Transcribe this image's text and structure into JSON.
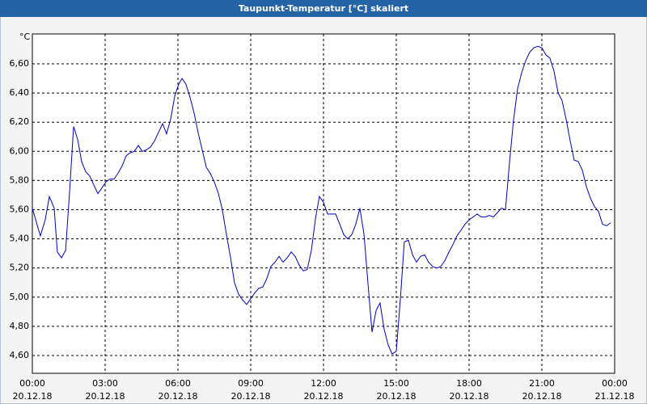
{
  "chart_data": {
    "type": "line",
    "title": "Taupunkt-Temperatur [°C] skaliert",
    "y_unit": "°C",
    "color": "#0000c8",
    "grid": true,
    "xlim": [
      0,
      24
    ],
    "ylim": [
      4.478,
      6.805
    ],
    "xticks": [
      {
        "value": 0,
        "label": "00:00",
        "date": "20.12.18"
      },
      {
        "value": 3,
        "label": "03:00",
        "date": "20.12.18"
      },
      {
        "value": 6,
        "label": "06:00",
        "date": "20.12.18"
      },
      {
        "value": 9,
        "label": "09:00",
        "date": "20.12.18"
      },
      {
        "value": 12,
        "label": "12:00",
        "date": "20.12.18"
      },
      {
        "value": 15,
        "label": "15:00",
        "date": "20.12.18"
      },
      {
        "value": 18,
        "label": "18:00",
        "date": "20.12.18"
      },
      {
        "value": 21,
        "label": "21:00",
        "date": "20.12.18"
      },
      {
        "value": 24,
        "label": "00:00",
        "date": "21.12.18"
      }
    ],
    "yticks": [
      {
        "value": 4.6,
        "label": "4,60"
      },
      {
        "value": 4.8,
        "label": "4,80"
      },
      {
        "value": 5.0,
        "label": "5,00"
      },
      {
        "value": 5.2,
        "label": "5,20"
      },
      {
        "value": 5.4,
        "label": "5,40"
      },
      {
        "value": 5.6,
        "label": "5,60"
      },
      {
        "value": 5.8,
        "label": "5,80"
      },
      {
        "value": 6.0,
        "label": "6,00"
      },
      {
        "value": 6.2,
        "label": "6,20"
      },
      {
        "value": 6.4,
        "label": "6,40"
      },
      {
        "value": 6.6,
        "label": "6,60"
      }
    ],
    "x": [
      0,
      0.33,
      0.53,
      0.7,
      0.9,
      1.03,
      1.2,
      1.37,
      1.53,
      1.7,
      1.87,
      2.03,
      2.2,
      2.37,
      2.53,
      2.7,
      2.87,
      3.03,
      3.2,
      3.37,
      3.53,
      3.7,
      3.87,
      4.03,
      4.2,
      4.37,
      4.53,
      4.7,
      4.87,
      5.03,
      5.2,
      5.37,
      5.53,
      5.7,
      5.87,
      6.03,
      6.17,
      6.33,
      6.5,
      6.67,
      6.83,
      7.0,
      7.17,
      7.33,
      7.5,
      7.67,
      7.83,
      8.0,
      8.17,
      8.33,
      8.5,
      8.67,
      8.83,
      9.0,
      9.17,
      9.33,
      9.5,
      9.67,
      9.83,
      10.0,
      10.17,
      10.33,
      10.5,
      10.67,
      10.83,
      11.0,
      11.17,
      11.33,
      11.5,
      11.67,
      11.83,
      12.0,
      12.17,
      12.33,
      12.5,
      12.67,
      12.83,
      13.0,
      13.17,
      13.33,
      13.5,
      13.67,
      13.83,
      14.0,
      14.17,
      14.33,
      14.5,
      14.67,
      14.83,
      15.0,
      15.17,
      15.33,
      15.5,
      15.67,
      15.83,
      16.0,
      16.17,
      16.33,
      16.5,
      16.67,
      16.83,
      17.0,
      17.17,
      17.33,
      17.5,
      17.67,
      17.83,
      18.0,
      18.17,
      18.33,
      18.5,
      18.67,
      18.83,
      19.0,
      19.17,
      19.33,
      19.5,
      19.67,
      19.83,
      20.0,
      20.17,
      20.33,
      20.5,
      20.67,
      20.83,
      21.0,
      21.17,
      21.33,
      21.5,
      21.67,
      21.83,
      22.0,
      22.17,
      22.33,
      22.5,
      22.67,
      22.83,
      23.0,
      23.17,
      23.33,
      23.5,
      23.67,
      23.83
    ],
    "values": [
      5.61,
      5.42,
      5.53,
      5.69,
      5.61,
      5.31,
      5.27,
      5.32,
      5.71,
      6.17,
      6.08,
      5.93,
      5.86,
      5.83,
      5.77,
      5.71,
      5.75,
      5.79,
      5.81,
      5.81,
      5.85,
      5.9,
      5.97,
      5.99,
      6.0,
      6.04,
      6.0,
      6.01,
      6.03,
      6.07,
      6.13,
      6.19,
      6.12,
      6.22,
      6.38,
      6.46,
      6.5,
      6.46,
      6.37,
      6.26,
      6.13,
      6.01,
      5.89,
      5.85,
      5.79,
      5.71,
      5.6,
      5.43,
      5.27,
      5.1,
      5.02,
      4.98,
      4.95,
      4.99,
      5.03,
      5.06,
      5.07,
      5.13,
      5.21,
      5.24,
      5.28,
      5.24,
      5.27,
      5.31,
      5.28,
      5.22,
      5.18,
      5.19,
      5.32,
      5.54,
      5.69,
      5.65,
      5.57,
      5.57,
      5.57,
      5.5,
      5.43,
      5.4,
      5.43,
      5.5,
      5.61,
      5.43,
      5.1,
      4.76,
      4.91,
      4.96,
      4.78,
      4.67,
      4.61,
      4.63,
      4.99,
      5.38,
      5.39,
      5.29,
      5.24,
      5.28,
      5.29,
      5.24,
      5.21,
      5.2,
      5.21,
      5.25,
      5.31,
      5.36,
      5.42,
      5.46,
      5.5,
      5.53,
      5.55,
      5.57,
      5.55,
      5.55,
      5.56,
      5.55,
      5.58,
      5.61,
      5.6,
      5.93,
      6.21,
      6.43,
      6.54,
      6.62,
      6.68,
      6.71,
      6.72,
      6.71,
      6.66,
      6.64,
      6.55,
      6.4,
      6.35,
      6.22,
      6.07,
      5.94,
      5.93,
      5.87,
      5.76,
      5.68,
      5.62,
      5.59,
      5.5,
      5.49,
      5.51
    ]
  }
}
